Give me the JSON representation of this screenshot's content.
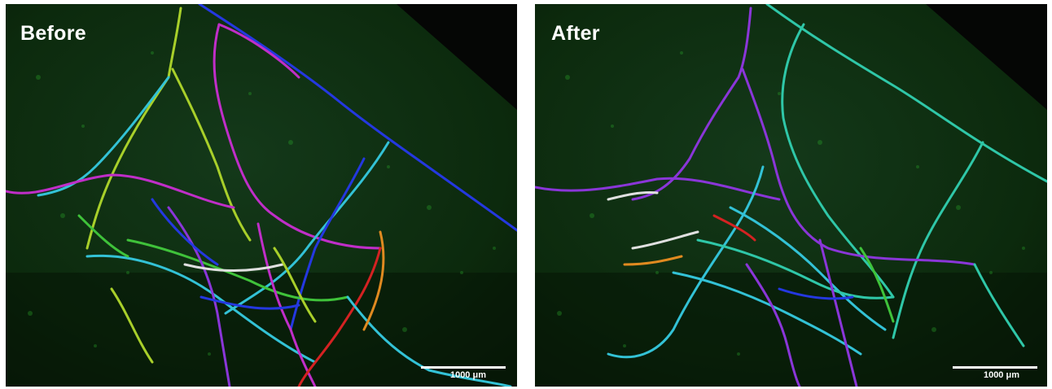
{
  "panels": [
    {
      "label": "Before",
      "scale_bar": "1000 μm"
    },
    {
      "label": "After",
      "scale_bar": "1000 μm"
    }
  ],
  "colors": {
    "tissue": "#0c2a0c",
    "background": "#050605",
    "blue": "#2438e0",
    "magenta": "#c02ec8",
    "purple": "#8a36d8",
    "teal": "#2fc7a8",
    "cyan": "#33c2d6",
    "lime": "#a8cf2a",
    "green": "#3fc23a",
    "red": "#d42222",
    "white": "#e0e0e0",
    "orange": "#e08a20"
  }
}
